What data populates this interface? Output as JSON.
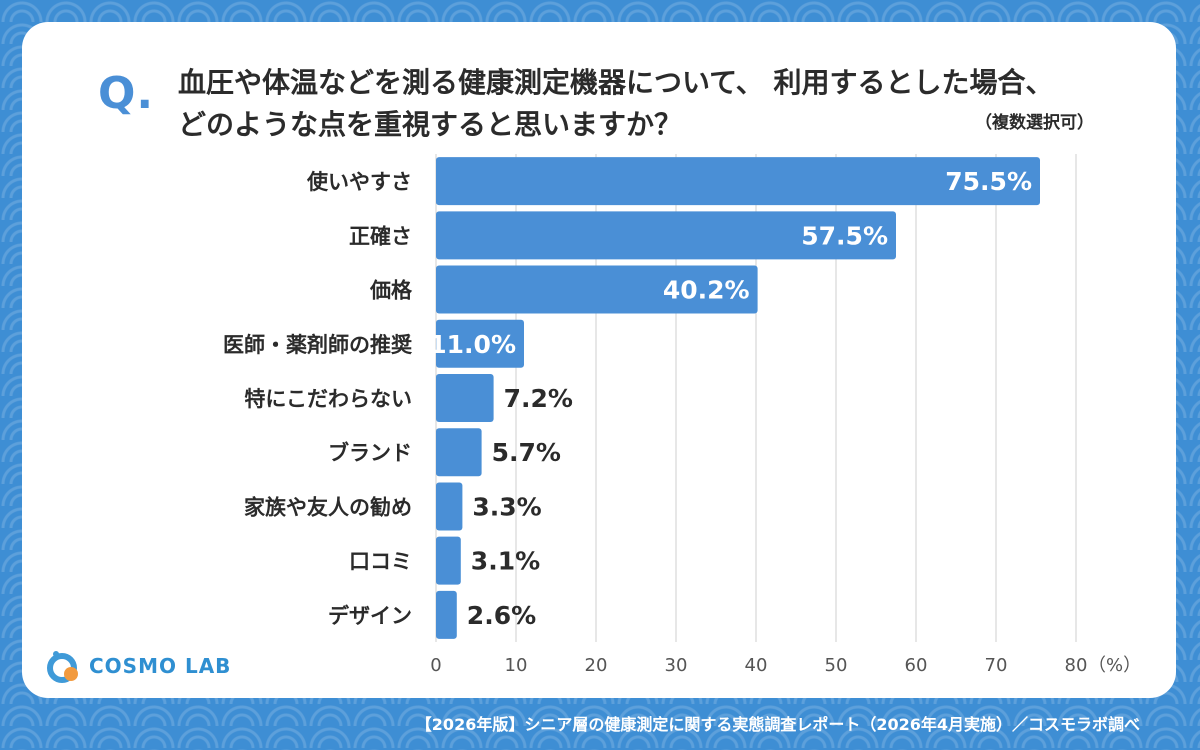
{
  "question": {
    "mark": "Q.",
    "title_line1": "血圧や体温などを測る健康測定機器について、 利用するとした場合、",
    "title_line2": "どのような点を重視すると思いますか？",
    "note": "（複数選択可）"
  },
  "chart_data": {
    "type": "bar",
    "orientation": "horizontal",
    "categories": [
      "使いやすさ",
      "正確さ",
      "価格",
      "医師・薬剤師の推奨",
      "特にこだわらない",
      "ブランド",
      "家族や友人の勧め",
      "口コミ",
      "デザイン"
    ],
    "values": [
      75.5,
      57.5,
      40.2,
      11.0,
      7.2,
      5.7,
      3.3,
      3.1,
      2.6
    ],
    "value_labels": [
      "75.5%",
      "57.5%",
      "40.2%",
      "11.0%",
      "7.2%",
      "5.7%",
      "3.3%",
      "3.1%",
      "2.6%"
    ],
    "xlim": [
      0,
      80
    ],
    "xticks": [
      0,
      10,
      20,
      30,
      40,
      50,
      60,
      70,
      80
    ],
    "xunit": "（%）",
    "grid": true,
    "bar_color": "#4a8fd6"
  },
  "logo": {
    "text": "COSMO LAB"
  },
  "footer": {
    "text": "【2026年版】シニア層の健康測定に関する実態調査レポート（2026年4月実施）／コスモラボ調べ"
  },
  "colors": {
    "background": "#3e8ed4",
    "accent": "#4a8fd6",
    "text": "#2b2b2b"
  }
}
